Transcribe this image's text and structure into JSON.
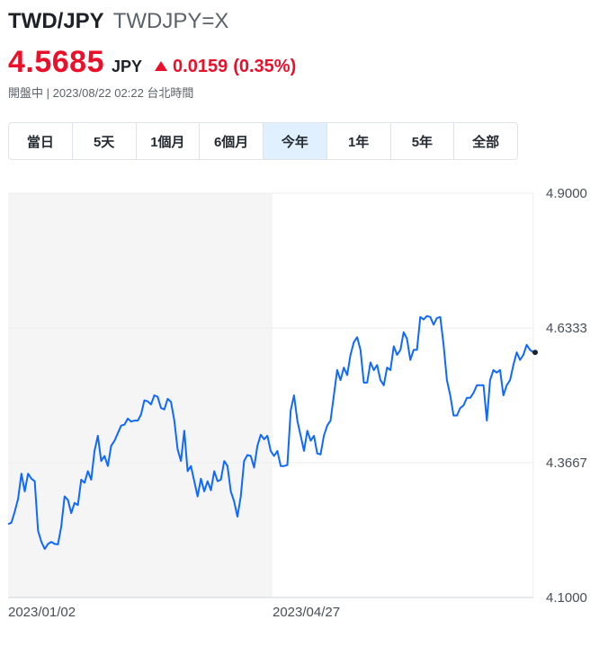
{
  "header": {
    "pair": "TWD/JPY",
    "symbol": "TWDJPY=X",
    "price": "4.5685",
    "currency": "JPY",
    "change": "0.0159",
    "change_pct": "(0.35%)",
    "market_status": "開盤中 | 2023/08/22 02:22 台北時間",
    "up_color": "#eb0f29"
  },
  "tabs": [
    {
      "label": "當日",
      "active": false
    },
    {
      "label": "5天",
      "active": false
    },
    {
      "label": "1個月",
      "active": false
    },
    {
      "label": "6個月",
      "active": false
    },
    {
      "label": "今年",
      "active": true
    },
    {
      "label": "1年",
      "active": false
    },
    {
      "label": "5年",
      "active": false
    },
    {
      "label": "全部",
      "active": false
    }
  ],
  "chart_data": {
    "type": "line",
    "title": "",
    "xlabel": "",
    "ylabel": "",
    "ylim": [
      4.1,
      4.9
    ],
    "y_ticks": [
      "4.9000",
      "4.6333",
      "4.3667",
      "4.1000"
    ],
    "x_ticks": [
      "2023/01/02",
      "2023/04/27"
    ],
    "line_color": "#0f69ff",
    "shaded_region": "2023/01/02 to 2023/04/27",
    "grid": true,
    "series": [
      {
        "values": [
          4.245,
          4.248,
          4.27,
          4.295,
          4.345,
          4.31,
          4.345,
          4.335,
          4.33,
          4.232,
          4.21,
          4.196,
          4.206,
          4.21,
          4.206,
          4.205,
          4.24,
          4.3,
          4.293,
          4.267,
          4.287,
          4.283,
          4.333,
          4.327,
          4.35,
          4.333,
          4.39,
          4.42,
          4.37,
          4.38,
          4.36,
          4.4,
          4.41,
          4.425,
          4.44,
          4.442,
          4.454,
          4.448,
          4.45,
          4.45,
          4.462,
          4.49,
          4.488,
          4.482,
          4.5,
          4.497,
          4.475,
          4.472,
          4.493,
          4.487,
          4.45,
          4.393,
          4.37,
          4.43,
          4.35,
          4.36,
          4.33,
          4.3,
          4.335,
          4.31,
          4.33,
          4.312,
          4.35,
          4.33,
          4.333,
          4.37,
          4.36,
          4.31,
          4.29,
          4.26,
          4.3,
          4.37,
          4.382,
          4.38,
          4.357,
          4.4,
          4.422,
          4.413,
          4.42,
          4.39,
          4.38,
          4.39,
          4.36,
          4.36,
          4.362,
          4.47,
          4.5,
          4.45,
          4.42,
          4.39,
          4.43,
          4.41,
          4.42,
          4.385,
          4.383,
          4.42,
          4.44,
          4.45,
          4.5,
          4.55,
          4.53,
          4.555,
          4.54,
          4.58,
          4.605,
          4.615,
          4.59,
          4.525,
          4.525,
          4.565,
          4.55,
          4.56,
          4.53,
          4.52,
          4.555,
          4.55,
          4.597,
          4.58,
          4.59,
          4.625,
          4.612,
          4.57,
          4.59,
          4.59,
          4.655,
          4.65,
          4.657,
          4.655,
          4.64,
          4.653,
          4.655,
          4.6,
          4.53,
          4.5,
          4.46,
          4.46,
          4.475,
          4.48,
          4.495,
          4.495,
          4.505,
          4.52,
          4.52,
          4.52,
          4.45,
          4.53,
          4.55,
          4.545,
          4.55,
          4.5,
          4.52,
          4.53,
          4.56,
          4.585,
          4.57,
          4.58,
          4.6,
          4.59,
          4.585
        ]
      }
    ]
  }
}
